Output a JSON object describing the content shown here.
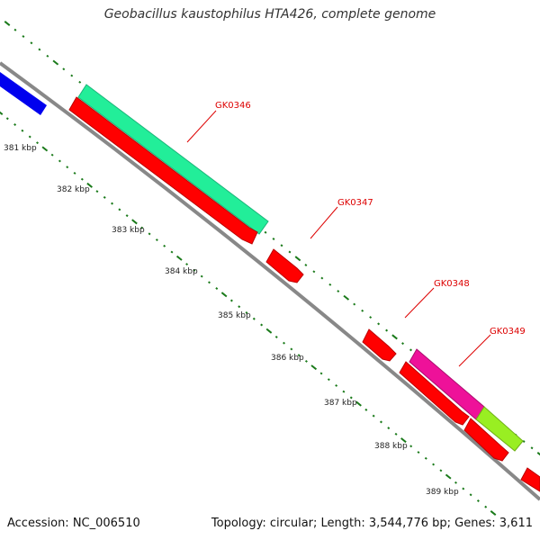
{
  "title": "Geobacillus kaustophilus HTA426, complete genome",
  "accession_text": "Accession: NC_006510",
  "summary_text": "Topology: circular; Length: 3,544,776 bp; Genes: 3,611",
  "colors": {
    "backbone": "#888888",
    "ticks": "#1a7a1a",
    "gene_red": "#ff0000",
    "gene_blue": "#0000ee",
    "gene_teal": "#22ee99",
    "gene_magenta": "#ee1199",
    "gene_lime": "#99ee22",
    "label_red": "#dd0000"
  },
  "kbp_labels": [
    "381 kbp",
    "382 kbp",
    "383 kbp",
    "384 kbp",
    "385 kbp",
    "386 kbp",
    "387 kbp",
    "388 kbp",
    "389 kbp"
  ],
  "gene_labels": [
    "GK0346",
    "GK0347",
    "GK0348",
    "GK0349"
  ],
  "features": [
    {
      "name": "blue-feature",
      "color": "blue"
    },
    {
      "name": "gk0346-teal",
      "color": "teal"
    },
    {
      "name": "gk0346-red",
      "color": "red"
    },
    {
      "name": "gk0347-red",
      "color": "red"
    },
    {
      "name": "gk0348-red",
      "color": "red"
    },
    {
      "name": "gk0349-magenta",
      "color": "magenta"
    },
    {
      "name": "gk0349-lime",
      "color": "lime"
    },
    {
      "name": "gk0348-red-lower",
      "color": "red"
    },
    {
      "name": "gk0349-red-lower",
      "color": "red"
    },
    {
      "name": "edge-red",
      "color": "red"
    }
  ]
}
